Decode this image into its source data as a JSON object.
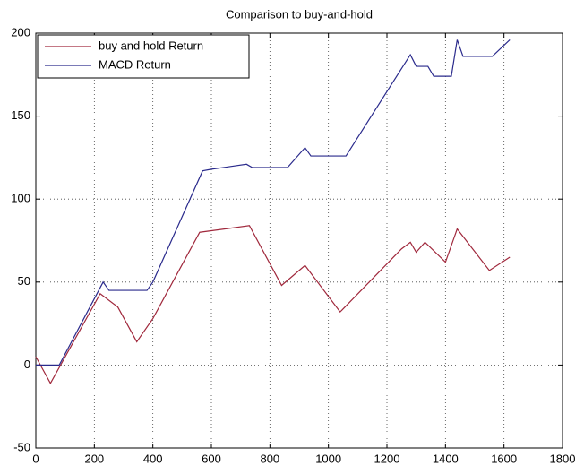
{
  "chart_data": {
    "type": "line",
    "title": "Comparison to buy-and-hold",
    "series": [
      {
        "name": "buy and hold Return",
        "color": "#a0283c",
        "x": [
          0,
          50,
          220,
          280,
          345,
          400,
          560,
          730,
          840,
          920,
          1040,
          1250,
          1280,
          1300,
          1330,
          1400,
          1440,
          1550,
          1620
        ],
        "values": [
          5,
          -11,
          43,
          35,
          14,
          28,
          80,
          84,
          48,
          60,
          32,
          70,
          74,
          68,
          74,
          62,
          82,
          57,
          65
        ]
      },
      {
        "name": "MACD Return",
        "color": "#2a2a8c",
        "x": [
          0,
          80,
          230,
          250,
          380,
          400,
          570,
          600,
          720,
          740,
          860,
          920,
          940,
          1060,
          1280,
          1300,
          1340,
          1360,
          1420,
          1440,
          1460,
          1560,
          1620
        ],
        "values": [
          0,
          0,
          50,
          45,
          45,
          50,
          117,
          118,
          121,
          119,
          119,
          131,
          126,
          126,
          187,
          180,
          180,
          174,
          174,
          196,
          186,
          186,
          196
        ]
      }
    ],
    "xlim": [
      0,
      1800
    ],
    "xticks": [
      0,
      200,
      400,
      600,
      800,
      1000,
      1200,
      1400,
      1600,
      1800
    ],
    "ylim": [
      -50,
      200
    ],
    "yticks": [
      -50,
      0,
      50,
      100,
      150,
      200
    ],
    "grid": true,
    "legend": "upper-left"
  }
}
